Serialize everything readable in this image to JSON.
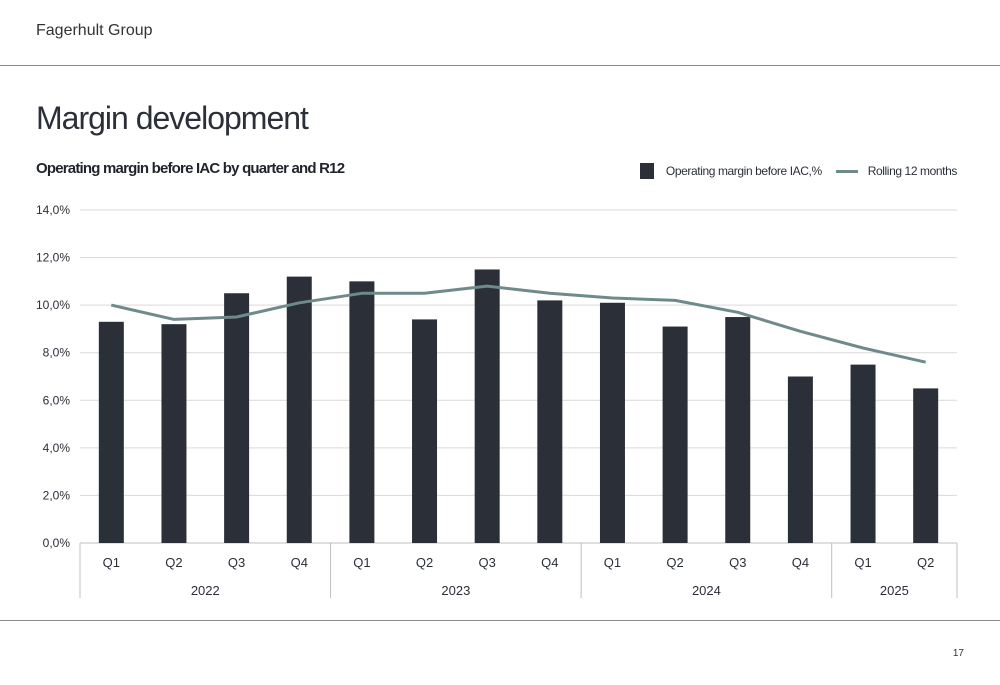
{
  "header": {
    "brand": "Fagerhult Group"
  },
  "page": {
    "title": "Margin development",
    "number": "17"
  },
  "legend": {
    "bar_label": "Operating margin before IAC,%",
    "line_label": "Rolling 12 months"
  },
  "colors": {
    "bar": "#2b2f38",
    "line": "#6f8a8b",
    "grid": "#d9d9d9",
    "axis": "#bfbfbf"
  },
  "chart_data": {
    "type": "bar",
    "title": "Operating margin before IAC by quarter and R12",
    "categories": [
      "Q1",
      "Q2",
      "Q3",
      "Q4",
      "Q1",
      "Q2",
      "Q3",
      "Q4",
      "Q1",
      "Q2",
      "Q3",
      "Q4",
      "Q1",
      "Q2"
    ],
    "groups": [
      {
        "label": "2022",
        "count": 4
      },
      {
        "label": "2023",
        "count": 4
      },
      {
        "label": "2024",
        "count": 4
      },
      {
        "label": "2025",
        "count": 2
      }
    ],
    "series": [
      {
        "name": "Operating margin before IAC,%",
        "type": "bar",
        "values": [
          9.3,
          9.2,
          10.5,
          11.2,
          11.0,
          9.4,
          11.5,
          10.2,
          10.1,
          9.1,
          9.5,
          7.0,
          7.5,
          6.5
        ]
      },
      {
        "name": "Rolling 12 months",
        "type": "line",
        "values": [
          10.0,
          9.4,
          9.5,
          10.1,
          10.5,
          10.5,
          10.8,
          10.5,
          10.3,
          10.2,
          9.7,
          8.9,
          8.2,
          7.6
        ]
      }
    ],
    "yticks": [
      "0,0%",
      "2,0%",
      "4,0%",
      "6,0%",
      "8,0%",
      "10,0%",
      "12,0%",
      "14,0%"
    ],
    "ylim": [
      0,
      14
    ],
    "grid": true,
    "legend_position": "top-right"
  }
}
